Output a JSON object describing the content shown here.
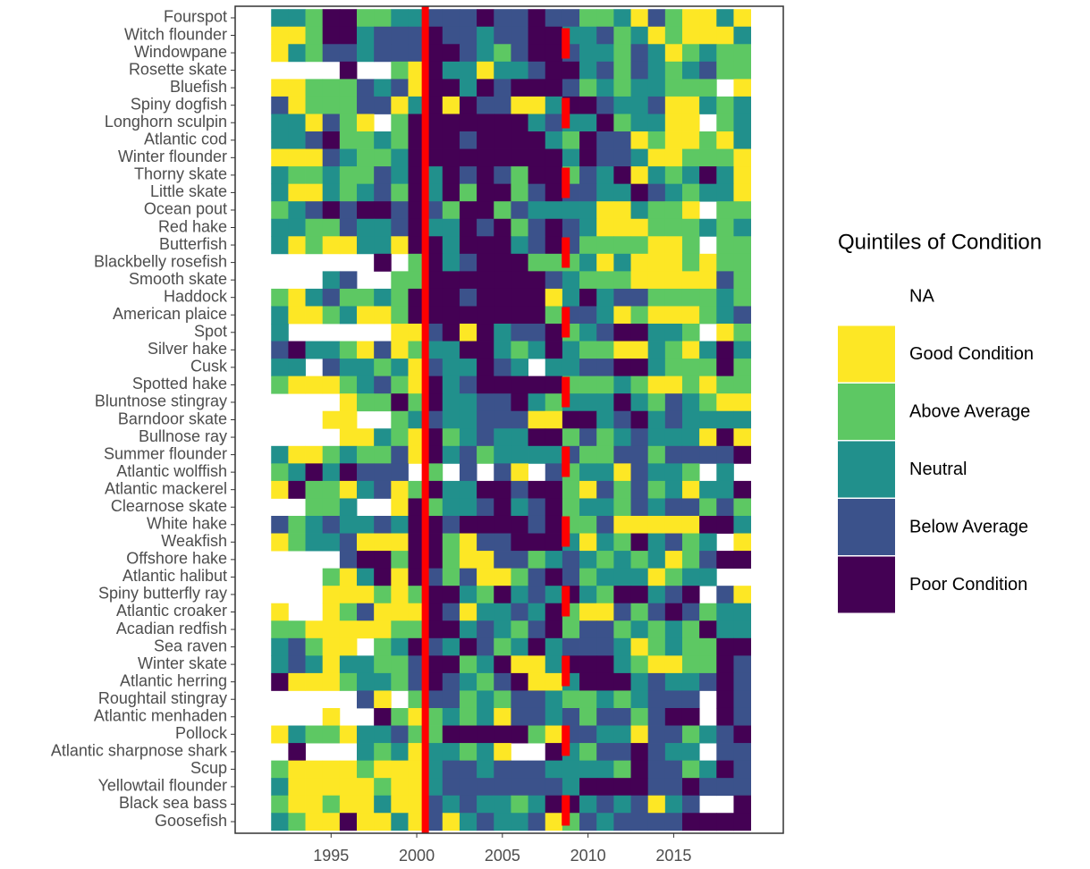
{
  "chart_data": {
    "type": "heatmap",
    "categories": [
      "Fourspot",
      "Witch flounder",
      "Windowpane",
      "Rosette skate",
      "Bluefish",
      "Spiny dogfish",
      "Longhorn sculpin",
      "Atlantic cod",
      "Winter flounder",
      "Thorny skate",
      "Little skate",
      "Ocean pout",
      "Red hake",
      "Butterfish",
      "Blackbelly rosefish",
      "Smooth skate",
      "Haddock",
      "American plaice",
      "Spot",
      "Silver hake",
      "Cusk",
      "Spotted hake",
      "Bluntnose stingray",
      "Barndoor skate",
      "Bullnose ray",
      "Summer flounder",
      "Atlantic wolffish",
      "Atlantic mackerel",
      "Clearnose skate",
      "White hake",
      "Weakfish",
      "Offshore hake",
      "Atlantic halibut",
      "Spiny butterfly ray",
      "Atlantic croaker",
      "Acadian redfish",
      "Sea raven",
      "Winter skate",
      "Atlantic herring",
      "Roughtail stingray",
      "Atlantic menhaden",
      "Pollock",
      "Atlantic sharpnose shark",
      "Scup",
      "Yellowtail flounder",
      "Black sea bass",
      "Goosefish"
    ],
    "x": [
      1992,
      1993,
      1994,
      1995,
      1996,
      1997,
      1998,
      1999,
      2000,
      2001,
      2002,
      2003,
      2004,
      2005,
      2006,
      2007,
      2008,
      2009,
      2010,
      2011,
      2012,
      2013,
      2014,
      2015,
      2016,
      2017,
      2018,
      2019
    ],
    "z": [
      [
        3,
        3,
        4,
        1,
        1,
        4,
        4,
        3,
        3,
        2,
        2,
        2,
        1,
        2,
        2,
        1,
        2,
        2,
        4,
        4,
        3,
        5,
        2,
        4,
        5,
        5,
        3,
        5
      ],
      [
        5,
        5,
        4,
        1,
        1,
        3,
        2,
        2,
        2,
        1,
        2,
        2,
        3,
        2,
        2,
        1,
        1,
        3,
        3,
        2,
        4,
        3,
        5,
        4,
        5,
        5,
        5,
        3
      ],
      [
        5,
        3,
        4,
        2,
        2,
        3,
        2,
        2,
        2,
        1,
        1,
        2,
        3,
        4,
        2,
        1,
        1,
        2,
        3,
        3,
        4,
        2,
        3,
        5,
        4,
        3,
        4,
        4
      ],
      [
        null,
        null,
        null,
        null,
        1,
        null,
        null,
        4,
        5,
        1,
        3,
        3,
        5,
        3,
        3,
        2,
        1,
        1,
        3,
        2,
        4,
        2,
        3,
        4,
        3,
        2,
        4,
        4
      ],
      [
        5,
        5,
        4,
        4,
        4,
        2,
        3,
        2,
        5,
        1,
        1,
        3,
        1,
        2,
        1,
        1,
        1,
        2,
        4,
        3,
        4,
        3,
        3,
        4,
        4,
        4,
        null,
        5
      ],
      [
        2,
        5,
        4,
        4,
        4,
        2,
        2,
        5,
        3,
        1,
        5,
        1,
        2,
        2,
        5,
        5,
        3,
        1,
        1,
        2,
        3,
        3,
        2,
        5,
        5,
        3,
        4,
        3
      ],
      [
        3,
        3,
        5,
        2,
        4,
        5,
        null,
        4,
        1,
        1,
        1,
        1,
        1,
        1,
        1,
        3,
        2,
        3,
        3,
        1,
        4,
        3,
        3,
        5,
        5,
        null,
        4,
        3
      ],
      [
        3,
        3,
        2,
        1,
        4,
        4,
        3,
        4,
        1,
        1,
        1,
        2,
        1,
        1,
        1,
        1,
        3,
        4,
        1,
        2,
        2,
        5,
        4,
        5,
        5,
        4,
        5,
        3
      ],
      [
        5,
        5,
        5,
        2,
        3,
        4,
        4,
        3,
        1,
        1,
        1,
        1,
        1,
        1,
        1,
        1,
        1,
        3,
        1,
        2,
        2,
        3,
        5,
        5,
        4,
        4,
        4,
        5
      ],
      [
        3,
        4,
        4,
        3,
        4,
        4,
        2,
        3,
        1,
        3,
        1,
        2,
        1,
        2,
        4,
        1,
        1,
        4,
        2,
        3,
        1,
        5,
        3,
        4,
        3,
        1,
        3,
        5
      ],
      [
        3,
        5,
        5,
        3,
        4,
        3,
        2,
        4,
        1,
        3,
        1,
        4,
        1,
        1,
        4,
        2,
        1,
        2,
        2,
        3,
        3,
        1,
        2,
        3,
        4,
        3,
        3,
        5
      ],
      [
        4,
        3,
        2,
        1,
        2,
        1,
        1,
        2,
        1,
        2,
        4,
        1,
        1,
        4,
        2,
        3,
        3,
        3,
        3,
        5,
        5,
        3,
        4,
        4,
        5,
        null,
        4,
        4
      ],
      [
        3,
        3,
        4,
        4,
        2,
        3,
        3,
        2,
        1,
        3,
        3,
        1,
        2,
        1,
        4,
        2,
        1,
        2,
        3,
        5,
        5,
        5,
        4,
        4,
        4,
        3,
        4,
        3
      ],
      [
        3,
        5,
        4,
        5,
        5,
        3,
        3,
        5,
        1,
        1,
        3,
        1,
        1,
        1,
        3,
        2,
        1,
        2,
        4,
        4,
        4,
        4,
        5,
        5,
        4,
        null,
        4,
        4
      ],
      [
        null,
        null,
        null,
        null,
        null,
        null,
        1,
        null,
        4,
        1,
        3,
        2,
        1,
        1,
        1,
        4,
        4,
        4,
        3,
        5,
        3,
        5,
        5,
        5,
        4,
        5,
        4,
        4
      ],
      [
        null,
        null,
        null,
        3,
        2,
        null,
        null,
        4,
        4,
        1,
        1,
        1,
        1,
        1,
        1,
        1,
        2,
        3,
        4,
        4,
        4,
        5,
        5,
        5,
        5,
        5,
        2,
        4
      ],
      [
        4,
        5,
        3,
        2,
        4,
        4,
        3,
        4,
        1,
        1,
        1,
        2,
        1,
        1,
        1,
        1,
        5,
        3,
        1,
        3,
        2,
        2,
        4,
        4,
        4,
        4,
        3,
        4
      ],
      [
        3,
        5,
        5,
        4,
        3,
        5,
        5,
        4,
        1,
        1,
        1,
        1,
        1,
        1,
        1,
        1,
        4,
        2,
        2,
        3,
        5,
        4,
        5,
        5,
        5,
        4,
        3,
        2
      ],
      [
        3,
        null,
        null,
        null,
        null,
        null,
        null,
        5,
        5,
        2,
        1,
        5,
        1,
        3,
        2,
        2,
        1,
        4,
        3,
        2,
        1,
        1,
        3,
        3,
        4,
        null,
        5,
        4
      ],
      [
        2,
        1,
        3,
        3,
        4,
        5,
        2,
        5,
        4,
        3,
        3,
        1,
        1,
        3,
        4,
        3,
        1,
        3,
        4,
        4,
        5,
        5,
        3,
        4,
        5,
        3,
        1,
        3
      ],
      [
        3,
        3,
        null,
        2,
        3,
        3,
        4,
        3,
        5,
        2,
        3,
        3,
        1,
        2,
        3,
        null,
        3,
        3,
        2,
        2,
        1,
        1,
        3,
        4,
        4,
        4,
        1,
        4
      ],
      [
        4,
        5,
        5,
        5,
        4,
        3,
        2,
        4,
        5,
        1,
        3,
        2,
        1,
        1,
        1,
        1,
        1,
        4,
        4,
        4,
        3,
        4,
        5,
        5,
        4,
        5,
        4,
        4
      ],
      [
        null,
        null,
        null,
        null,
        5,
        4,
        4,
        1,
        4,
        1,
        3,
        3,
        2,
        2,
        1,
        3,
        4,
        3,
        3,
        3,
        1,
        3,
        4,
        2,
        3,
        4,
        5,
        5
      ],
      [
        null,
        null,
        null,
        5,
        5,
        null,
        null,
        4,
        3,
        2,
        3,
        3,
        2,
        2,
        2,
        5,
        5,
        1,
        1,
        3,
        2,
        1,
        3,
        2,
        3,
        3,
        3,
        3
      ],
      [
        null,
        null,
        null,
        null,
        5,
        5,
        3,
        4,
        5,
        1,
        4,
        3,
        2,
        3,
        3,
        1,
        1,
        4,
        2,
        4,
        3,
        2,
        3,
        3,
        3,
        5,
        1,
        5
      ],
      [
        3,
        5,
        5,
        4,
        3,
        4,
        4,
        2,
        5,
        1,
        3,
        2,
        4,
        3,
        3,
        3,
        3,
        2,
        4,
        4,
        2,
        2,
        4,
        2,
        2,
        2,
        2,
        1
      ],
      [
        4,
        3,
        1,
        3,
        1,
        2,
        2,
        2,
        null,
        4,
        null,
        2,
        null,
        2,
        5,
        null,
        2,
        4,
        3,
        3,
        5,
        2,
        3,
        3,
        4,
        null,
        3,
        null
      ],
      [
        5,
        1,
        4,
        4,
        5,
        3,
        2,
        5,
        4,
        1,
        3,
        3,
        1,
        1,
        2,
        1,
        1,
        4,
        5,
        2,
        4,
        2,
        4,
        3,
        5,
        3,
        3,
        1
      ],
      [
        null,
        null,
        4,
        4,
        3,
        null,
        null,
        5,
        1,
        4,
        3,
        3,
        2,
        1,
        3,
        2,
        1,
        4,
        3,
        3,
        4,
        2,
        3,
        2,
        2,
        4,
        2,
        4
      ],
      [
        2,
        4,
        3,
        2,
        3,
        3,
        2,
        3,
        1,
        1,
        2,
        1,
        1,
        1,
        1,
        2,
        1,
        4,
        4,
        2,
        5,
        5,
        5,
        5,
        5,
        1,
        1,
        3
      ],
      [
        5,
        4,
        3,
        3,
        2,
        5,
        5,
        5,
        1,
        1,
        4,
        5,
        2,
        2,
        1,
        1,
        1,
        3,
        5,
        3,
        4,
        1,
        3,
        2,
        4,
        3,
        null,
        5
      ],
      [
        null,
        null,
        null,
        null,
        2,
        1,
        1,
        4,
        1,
        1,
        4,
        5,
        5,
        2,
        2,
        4,
        3,
        2,
        3,
        4,
        3,
        4,
        3,
        5,
        4,
        2,
        1,
        1
      ],
      [
        null,
        null,
        null,
        4,
        5,
        3,
        1,
        5,
        1,
        2,
        4,
        2,
        5,
        5,
        4,
        2,
        1,
        2,
        4,
        3,
        3,
        3,
        5,
        4,
        3,
        3,
        null,
        null
      ],
      [
        null,
        null,
        null,
        5,
        5,
        5,
        4,
        5,
        4,
        1,
        1,
        3,
        4,
        1,
        3,
        2,
        3,
        1,
        3,
        4,
        1,
        1,
        3,
        2,
        1,
        null,
        2,
        5
      ],
      [
        5,
        null,
        null,
        5,
        4,
        2,
        5,
        5,
        5,
        1,
        2,
        5,
        3,
        3,
        2,
        3,
        1,
        4,
        5,
        5,
        2,
        4,
        2,
        1,
        2,
        4,
        3,
        3
      ],
      [
        4,
        4,
        5,
        5,
        5,
        5,
        5,
        4,
        4,
        1,
        1,
        3,
        2,
        3,
        4,
        2,
        1,
        4,
        2,
        2,
        4,
        3,
        4,
        3,
        4,
        1,
        3,
        3
      ],
      [
        3,
        2,
        4,
        5,
        5,
        null,
        4,
        3,
        1,
        2,
        3,
        1,
        2,
        4,
        3,
        1,
        3,
        2,
        2,
        2,
        3,
        5,
        4,
        3,
        4,
        4,
        1,
        1
      ],
      [
        3,
        2,
        3,
        5,
        3,
        3,
        4,
        4,
        2,
        1,
        1,
        4,
        3,
        1,
        5,
        5,
        3,
        1,
        1,
        1,
        3,
        4,
        5,
        5,
        4,
        4,
        1,
        2
      ],
      [
        1,
        5,
        5,
        5,
        4,
        3,
        3,
        4,
        2,
        1,
        2,
        3,
        4,
        2,
        1,
        5,
        5,
        3,
        1,
        1,
        1,
        3,
        2,
        3,
        3,
        2,
        1,
        2
      ],
      [
        null,
        null,
        null,
        null,
        null,
        2,
        5,
        null,
        4,
        2,
        2,
        4,
        3,
        4,
        2,
        2,
        3,
        4,
        4,
        3,
        4,
        3,
        2,
        2,
        2,
        null,
        1,
        2
      ],
      [
        null,
        null,
        null,
        5,
        null,
        null,
        1,
        4,
        5,
        4,
        3,
        4,
        3,
        5,
        2,
        2,
        3,
        2,
        4,
        2,
        2,
        4,
        2,
        1,
        1,
        null,
        1,
        2
      ],
      [
        5,
        3,
        4,
        4,
        5,
        3,
        3,
        2,
        4,
        4,
        1,
        1,
        1,
        1,
        1,
        4,
        5,
        2,
        2,
        3,
        3,
        5,
        2,
        2,
        4,
        3,
        2,
        1
      ],
      [
        null,
        1,
        null,
        null,
        null,
        3,
        4,
        3,
        5,
        3,
        3,
        4,
        3,
        5,
        null,
        null,
        1,
        3,
        4,
        2,
        2,
        1,
        2,
        3,
        3,
        null,
        2,
        2
      ],
      [
        4,
        5,
        5,
        5,
        5,
        4,
        5,
        5,
        5,
        3,
        2,
        2,
        3,
        2,
        2,
        2,
        3,
        3,
        3,
        3,
        4,
        1,
        2,
        2,
        4,
        3,
        1,
        2
      ],
      [
        3,
        5,
        5,
        5,
        5,
        5,
        4,
        5,
        5,
        3,
        2,
        2,
        2,
        2,
        2,
        2,
        2,
        3,
        1,
        1,
        1,
        1,
        2,
        2,
        1,
        2,
        2,
        2
      ],
      [
        4,
        5,
        5,
        4,
        5,
        5,
        3,
        5,
        5,
        2,
        3,
        2,
        3,
        3,
        4,
        3,
        1,
        1,
        3,
        2,
        3,
        2,
        5,
        3,
        2,
        null,
        null,
        1
      ],
      [
        3,
        4,
        5,
        5,
        1,
        5,
        5,
        3,
        5,
        2,
        5,
        3,
        2,
        3,
        3,
        2,
        5,
        4,
        2,
        3,
        2,
        2,
        2,
        2,
        1,
        1,
        1,
        1
      ]
    ],
    "xlim": [
      1989.4,
      2021.4
    ],
    "xticks": [
      1995,
      2000,
      2005,
      2010,
      2015
    ],
    "vlines": [
      {
        "x": 2000.5,
        "style": "solid",
        "color": "#ff0000"
      },
      {
        "x": 2008.7,
        "style": "dashed",
        "color": "#ff0000"
      }
    ],
    "legend": {
      "title": "Quintiles of Condition",
      "entries": [
        {
          "label": "NA",
          "value": null,
          "color": "#ffffff"
        },
        {
          "label": "Good Condition",
          "value": 5,
          "color": "#fde725"
        },
        {
          "label": "Above Average",
          "value": 4,
          "color": "#5dc863"
        },
        {
          "label": "Neutral",
          "value": 3,
          "color": "#21908c"
        },
        {
          "label": "Below Average",
          "value": 2,
          "color": "#3b528b"
        },
        {
          "label": "Poor Condition",
          "value": 1,
          "color": "#440154"
        }
      ]
    }
  }
}
